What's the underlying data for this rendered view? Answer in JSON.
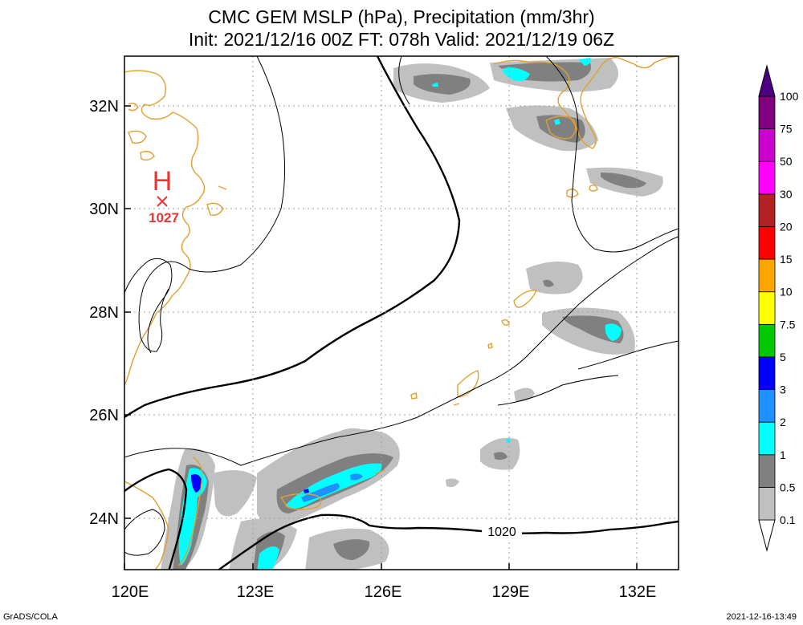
{
  "title": {
    "line1": "CMC GEM MSLP (hPa), Precipitation (mm/3hr)",
    "line2": "Init: 2021/12/16 00Z  FT: 078h  Valid: 2021/12/19 06Z"
  },
  "map": {
    "lon_labels": [
      "120E",
      "123E",
      "126E",
      "129E",
      "132E"
    ],
    "lat_labels": [
      "32N",
      "30N",
      "28N",
      "26N",
      "24N"
    ],
    "high": {
      "symbol": "H",
      "value": "1027"
    },
    "isobar_label": "1020"
  },
  "colorbar": {
    "levels": [
      "0.1",
      "0.5",
      "1",
      "2",
      "3",
      "5",
      "7.5",
      "10",
      "15",
      "20",
      "30",
      "50",
      "75",
      "100"
    ],
    "colors": [
      "#c0c0c0",
      "#808080",
      "#00ffff",
      "#1e90ff",
      "#0000ff",
      "#00c800",
      "#ffff00",
      "#ffa500",
      "#ff0000",
      "#b22222",
      "#ff00ff",
      "#cc00cc",
      "#800080",
      "#4b0082"
    ]
  },
  "footer": {
    "credit": "GrADS/COLA",
    "timestamp": "2021-12-16-13:49"
  }
}
